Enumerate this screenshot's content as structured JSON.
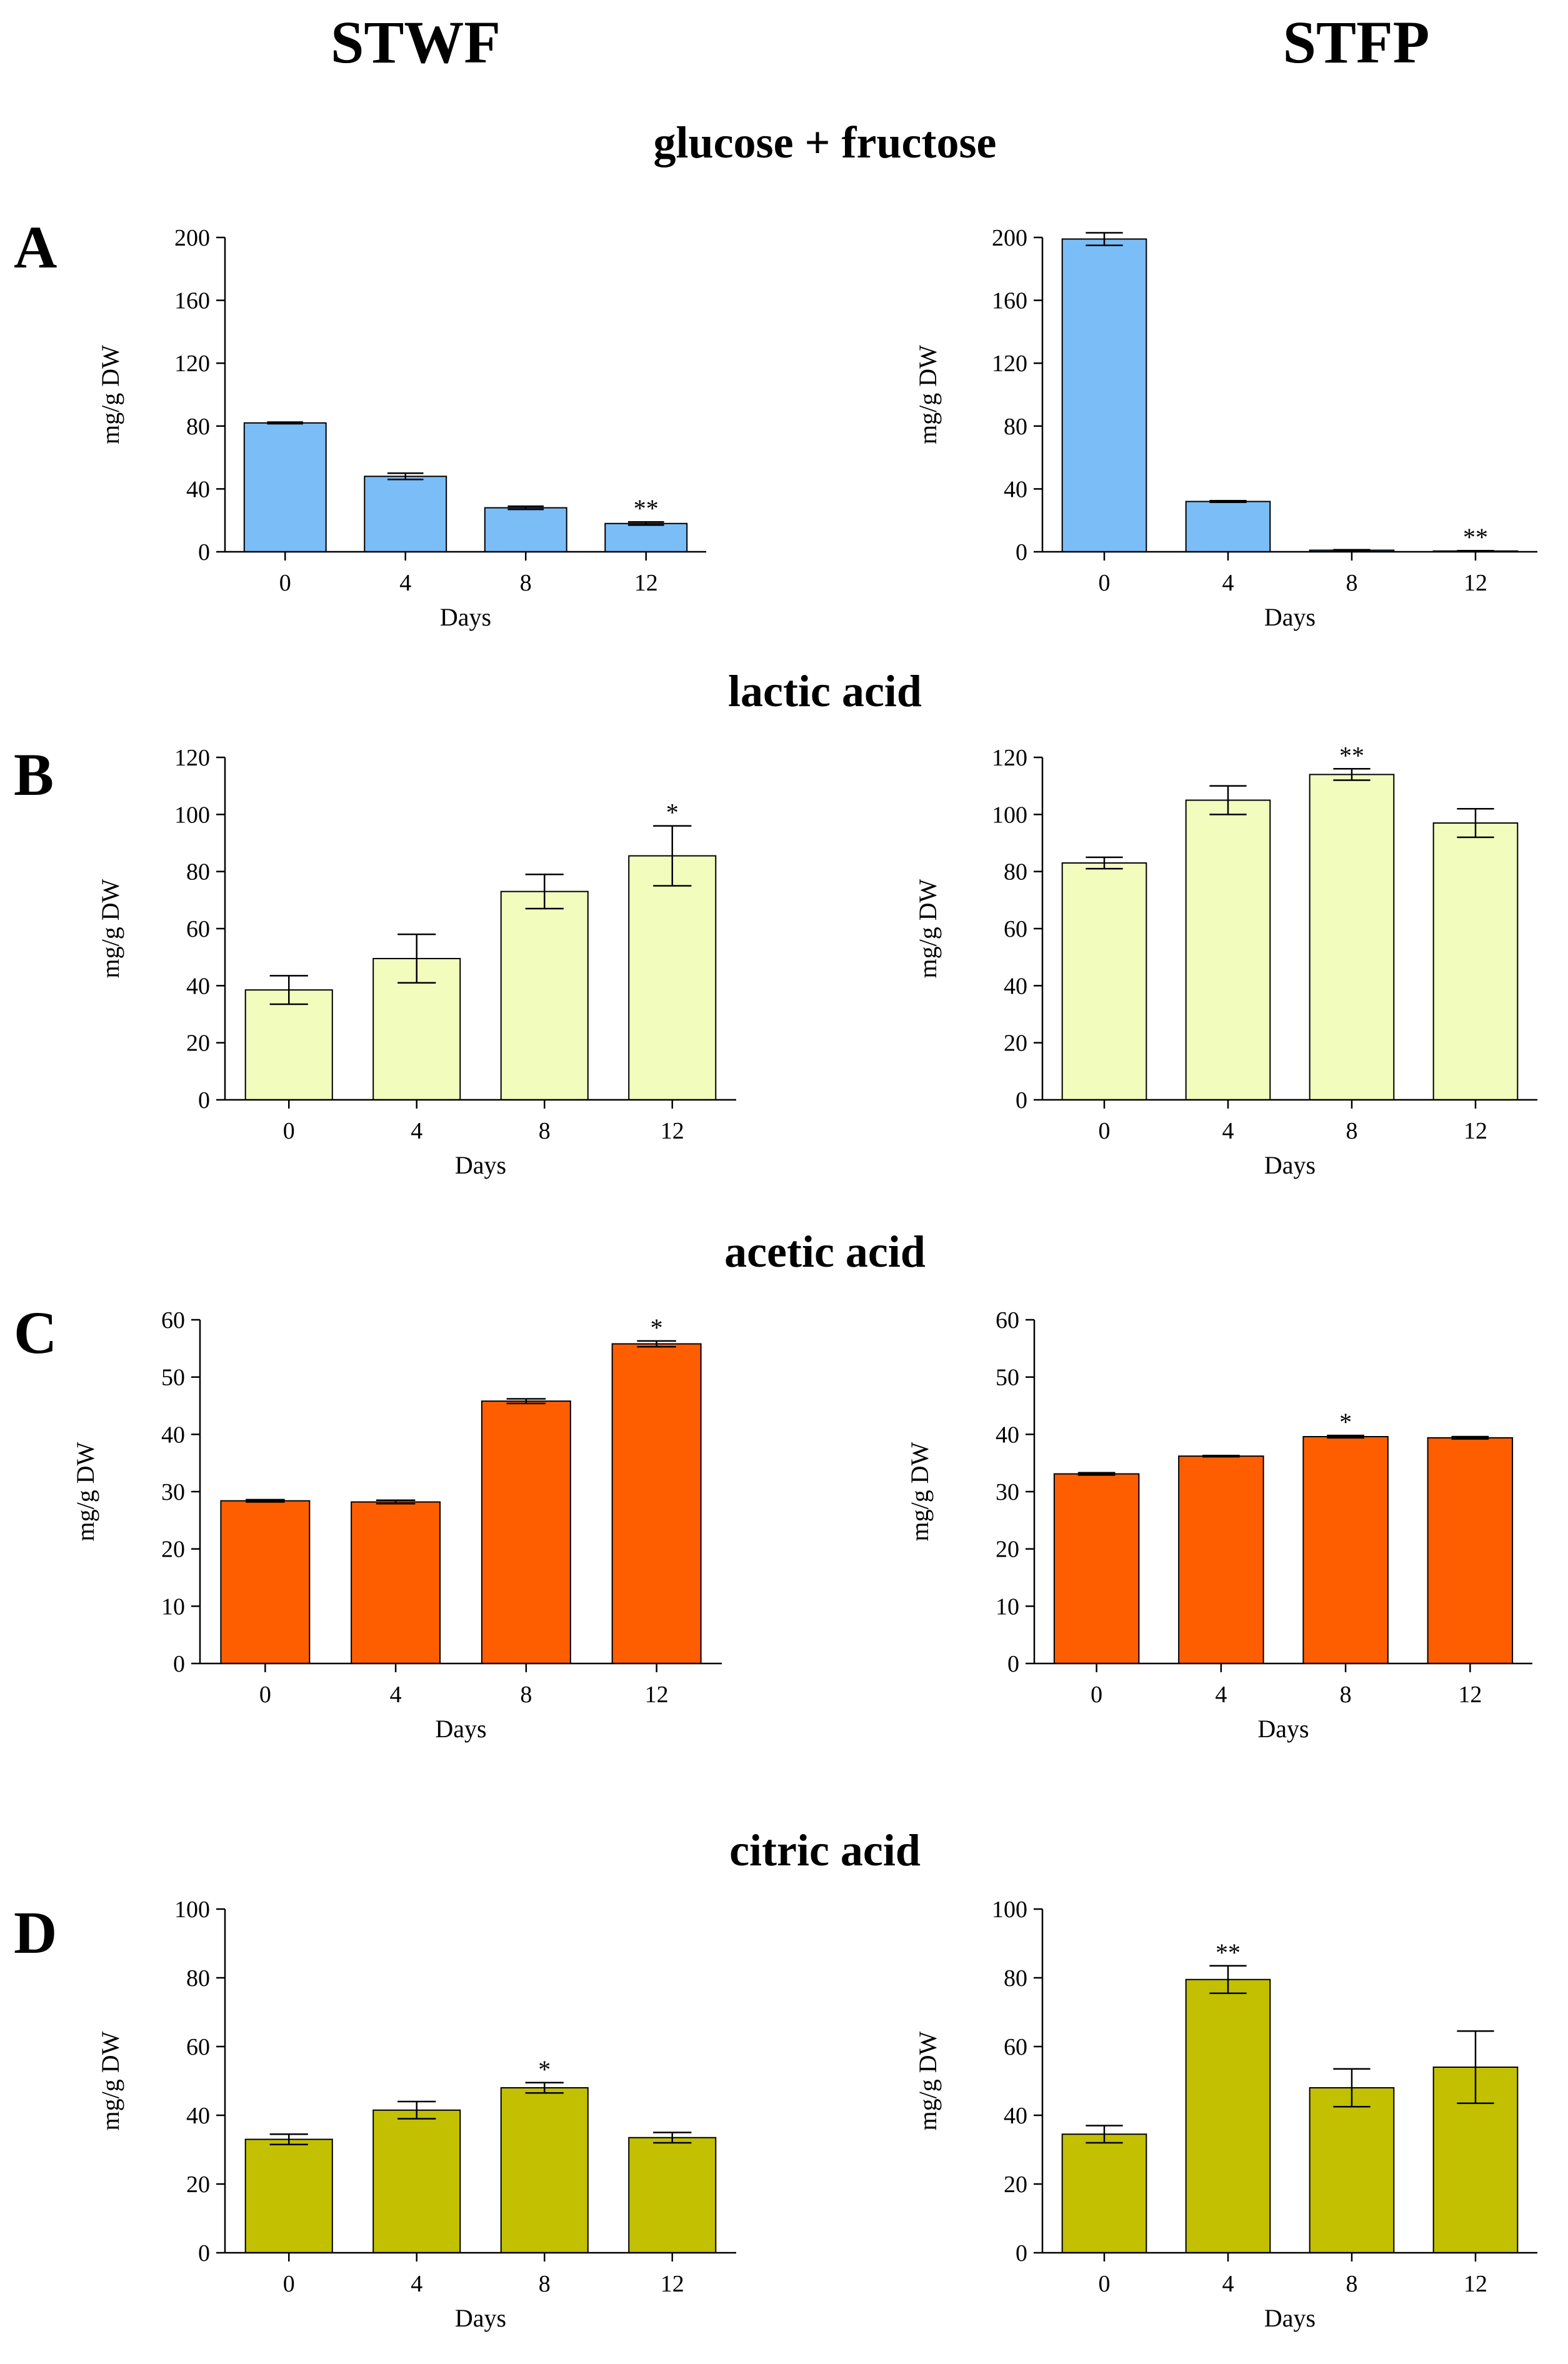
{
  "columns": [
    "STWF",
    "STFP"
  ],
  "rows": [
    {
      "letter": "A",
      "title": "glucose + fructose"
    },
    {
      "letter": "B",
      "title": "lactic acid"
    },
    {
      "letter": "C",
      "title": "acetic acid"
    },
    {
      "letter": "D",
      "title": "citric acid"
    }
  ],
  "chart_data": [
    {
      "id": "A-STWF",
      "type": "bar",
      "color": "#7bbdf7",
      "categories": [
        "0",
        "4",
        "8",
        "12"
      ],
      "values": [
        82,
        48,
        28,
        18
      ],
      "errors": [
        0.5,
        2,
        1,
        1
      ],
      "significance": [
        "",
        "",
        "",
        "**"
      ],
      "xlabel": "Days",
      "ylabel": "mg/g  DW",
      "ylim": [
        0,
        200
      ],
      "yticks": [
        0,
        40,
        80,
        120,
        160,
        200
      ]
    },
    {
      "id": "A-STFP",
      "type": "bar",
      "color": "#7bbdf7",
      "categories": [
        "0",
        "4",
        "8",
        "12"
      ],
      "values": [
        199,
        32,
        1,
        0.5
      ],
      "errors": [
        4,
        0.5,
        0.3,
        0.2
      ],
      "significance": [
        "",
        "",
        "",
        "**"
      ],
      "xlabel": "Days",
      "ylabel": "mg/g  DW",
      "ylim": [
        0,
        200
      ],
      "yticks": [
        0,
        40,
        80,
        120,
        160,
        200
      ]
    },
    {
      "id": "B-STWF",
      "type": "bar",
      "color": "#f1fcbd",
      "categories": [
        "0",
        "4",
        "8",
        "12"
      ],
      "values": [
        38.5,
        49.5,
        73,
        85.5
      ],
      "errors": [
        5,
        8.5,
        6,
        10.5
      ],
      "significance": [
        "",
        "",
        "",
        "*"
      ],
      "xlabel": "Days",
      "ylabel": "mg/g  DW",
      "ylim": [
        0,
        120
      ],
      "yticks": [
        0,
        20,
        40,
        60,
        80,
        100,
        120
      ]
    },
    {
      "id": "B-STFP",
      "type": "bar",
      "color": "#f1fcbd",
      "categories": [
        "0",
        "4",
        "8",
        "12"
      ],
      "values": [
        83,
        105,
        114,
        97
      ],
      "errors": [
        2,
        5,
        2,
        5
      ],
      "significance": [
        "",
        "",
        "**",
        ""
      ],
      "xlabel": "Days",
      "ylabel": "mg/g  DW",
      "ylim": [
        0,
        120
      ],
      "yticks": [
        0,
        20,
        40,
        60,
        80,
        100,
        120
      ]
    },
    {
      "id": "C-STWF",
      "type": "bar",
      "color": "#ff5e00",
      "categories": [
        "0",
        "4",
        "8",
        "12"
      ],
      "values": [
        28.4,
        28.2,
        45.8,
        55.8
      ],
      "errors": [
        0.2,
        0.3,
        0.4,
        0.5
      ],
      "significance": [
        "",
        "",
        "",
        "*"
      ],
      "xlabel": "Days",
      "ylabel": "mg/g  DW",
      "ylim": [
        0,
        60
      ],
      "yticks": [
        0,
        10,
        20,
        30,
        40,
        50,
        60
      ]
    },
    {
      "id": "C-STFP",
      "type": "bar",
      "color": "#ff5e00",
      "categories": [
        "0",
        "4",
        "8",
        "12"
      ],
      "values": [
        33.1,
        36.2,
        39.6,
        39.4
      ],
      "errors": [
        0.2,
        0.1,
        0.2,
        0.2
      ],
      "significance": [
        "",
        "",
        "*",
        ""
      ],
      "xlabel": "Days",
      "ylabel": "mg/g  DW",
      "ylim": [
        0,
        60
      ],
      "yticks": [
        0,
        10,
        20,
        30,
        40,
        50,
        60
      ]
    },
    {
      "id": "D-STWF",
      "type": "bar",
      "color": "#c2c000",
      "categories": [
        "0",
        "4",
        "8",
        "12"
      ],
      "values": [
        33,
        41.5,
        48,
        33.5
      ],
      "errors": [
        1.5,
        2.5,
        1.5,
        1.5
      ],
      "significance": [
        "",
        "",
        "*",
        ""
      ],
      "xlabel": "Days",
      "ylabel": "mg/g  DW",
      "ylim": [
        0,
        100
      ],
      "yticks": [
        0,
        20,
        40,
        60,
        80,
        100
      ]
    },
    {
      "id": "D-STFP",
      "type": "bar",
      "color": "#c2c000",
      "categories": [
        "0",
        "4",
        "8",
        "12"
      ],
      "values": [
        34.5,
        79.5,
        48,
        54
      ],
      "errors": [
        2.5,
        4,
        5.5,
        10.5
      ],
      "significance": [
        "",
        "**",
        "",
        ""
      ],
      "xlabel": "Days",
      "ylabel": "mg/g  DW",
      "ylim": [
        0,
        100
      ],
      "yticks": [
        0,
        20,
        40,
        60,
        80,
        100
      ]
    }
  ]
}
